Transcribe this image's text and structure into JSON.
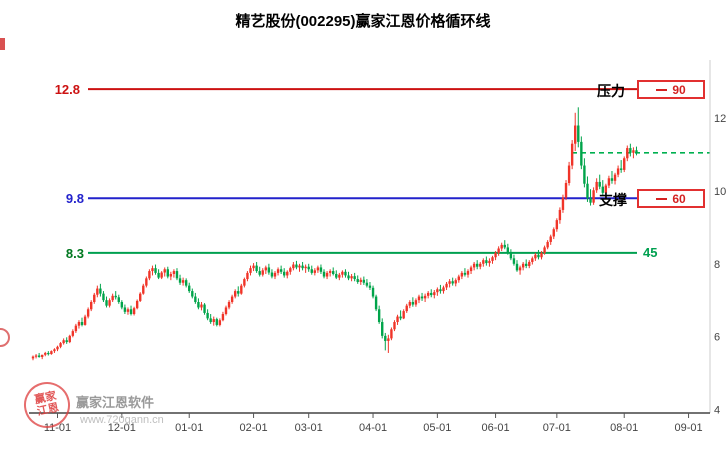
{
  "title": "精艺股份(002295)赢家江恩价格循环线",
  "levels": {
    "resistance": {
      "label": "压力",
      "price": "12.8",
      "value": "90"
    },
    "support": {
      "label": "支撑",
      "price": "9.8",
      "value": "60"
    },
    "cycle45": {
      "price": "8.3",
      "value": "45"
    }
  },
  "watermark": {
    "brand": "赢家江恩软件",
    "url": "www.720gann.cn",
    "seal_line1": "赢家",
    "seal_line2": "江恩"
  },
  "chart_data": {
    "type": "candlestick",
    "title": "精艺股份(002295)赢家江恩价格循环线",
    "up_color": "#f03428",
    "down_color": "#00a44a",
    "price_min": 3.9,
    "price_max": 13.6,
    "total_slots": 222,
    "y_ticks": [
      12,
      10,
      8,
      6,
      4
    ],
    "x_labels": [
      "11-01",
      "12-01",
      "01-01",
      "02-01",
      "03-01",
      "04-01",
      "05-01",
      "06-01",
      "07-01",
      "08-01",
      "09-01"
    ],
    "x_label_slots": [
      8,
      29,
      51,
      72,
      90,
      111,
      132,
      151,
      171,
      193,
      214
    ],
    "hlines": [
      {
        "price": 12.8,
        "color": "#cc1111",
        "style": "solid",
        "name": "resistance-line-90"
      },
      {
        "price": 9.8,
        "color": "#2222cc",
        "style": "solid",
        "name": "support-line-60"
      },
      {
        "price": 8.3,
        "color": "#00a050",
        "style": "solid",
        "name": "cycle-line-45"
      },
      {
        "price": 11.05,
        "color": "#00b050",
        "style": "dashed",
        "name": "current-price-line"
      }
    ],
    "candles": [
      [
        5.4,
        5.48,
        5.35,
        5.45
      ],
      [
        5.45,
        5.52,
        5.4,
        5.48
      ],
      [
        5.48,
        5.55,
        5.42,
        5.44
      ],
      [
        5.44,
        5.5,
        5.38,
        5.5
      ],
      [
        5.5,
        5.58,
        5.46,
        5.55
      ],
      [
        5.55,
        5.6,
        5.48,
        5.52
      ],
      [
        5.52,
        5.62,
        5.5,
        5.6
      ],
      [
        5.6,
        5.68,
        5.55,
        5.65
      ],
      [
        5.65,
        5.75,
        5.6,
        5.72
      ],
      [
        5.72,
        5.85,
        5.68,
        5.82
      ],
      [
        5.82,
        5.95,
        5.78,
        5.9
      ],
      [
        5.9,
        5.98,
        5.8,
        5.85
      ],
      [
        5.85,
        6.05,
        5.82,
        6.02
      ],
      [
        6.02,
        6.2,
        5.98,
        6.15
      ],
      [
        6.15,
        6.35,
        6.1,
        6.3
      ],
      [
        6.3,
        6.45,
        6.22,
        6.4
      ],
      [
        6.4,
        6.52,
        6.28,
        6.32
      ],
      [
        6.32,
        6.6,
        6.3,
        6.55
      ],
      [
        6.55,
        6.8,
        6.5,
        6.75
      ],
      [
        6.75,
        7.0,
        6.7,
        6.95
      ],
      [
        6.95,
        7.2,
        6.9,
        7.15
      ],
      [
        7.15,
        7.4,
        7.08,
        7.32
      ],
      [
        7.32,
        7.45,
        7.1,
        7.18
      ],
      [
        7.18,
        7.25,
        6.95,
        7.0
      ],
      [
        7.0,
        7.1,
        6.8,
        6.85
      ],
      [
        6.85,
        7.05,
        6.8,
        7.0
      ],
      [
        7.0,
        7.18,
        6.95,
        7.12
      ],
      [
        7.12,
        7.25,
        7.02,
        7.08
      ],
      [
        7.08,
        7.15,
        6.9,
        6.95
      ],
      [
        6.95,
        7.0,
        6.75,
        6.8
      ],
      [
        6.8,
        6.88,
        6.62,
        6.68
      ],
      [
        6.68,
        6.8,
        6.6,
        6.75
      ],
      [
        6.75,
        6.85,
        6.58,
        6.62
      ],
      [
        6.62,
        6.82,
        6.58,
        6.78
      ],
      [
        6.78,
        7.02,
        6.75,
        6.98
      ],
      [
        6.98,
        7.22,
        6.95,
        7.18
      ],
      [
        7.18,
        7.45,
        7.15,
        7.4
      ],
      [
        7.4,
        7.65,
        7.35,
        7.6
      ],
      [
        7.6,
        7.85,
        7.55,
        7.8
      ],
      [
        7.8,
        7.95,
        7.68,
        7.88
      ],
      [
        7.88,
        7.98,
        7.7,
        7.75
      ],
      [
        7.75,
        7.85,
        7.58,
        7.62
      ],
      [
        7.62,
        7.8,
        7.58,
        7.76
      ],
      [
        7.76,
        7.9,
        7.65,
        7.85
      ],
      [
        7.85,
        7.92,
        7.6,
        7.65
      ],
      [
        7.65,
        7.78,
        7.55,
        7.72
      ],
      [
        7.72,
        7.85,
        7.62,
        7.8
      ],
      [
        7.8,
        7.88,
        7.55,
        7.6
      ],
      [
        7.6,
        7.7,
        7.42,
        7.48
      ],
      [
        7.48,
        7.62,
        7.4,
        7.55
      ],
      [
        7.55,
        7.6,
        7.35,
        7.4
      ],
      [
        7.4,
        7.48,
        7.2,
        7.25
      ],
      [
        7.25,
        7.32,
        7.05,
        7.1
      ],
      [
        7.1,
        7.2,
        6.9,
        6.95
      ],
      [
        6.95,
        7.05,
        6.75,
        6.8
      ],
      [
        6.8,
        6.95,
        6.72,
        6.88
      ],
      [
        6.88,
        6.92,
        6.6,
        6.65
      ],
      [
        6.65,
        6.75,
        6.45,
        6.5
      ],
      [
        6.5,
        6.62,
        6.35,
        6.4
      ],
      [
        6.4,
        6.55,
        6.3,
        6.48
      ],
      [
        6.48,
        6.52,
        6.28,
        6.32
      ],
      [
        6.32,
        6.5,
        6.28,
        6.45
      ],
      [
        6.45,
        6.68,
        6.42,
        6.62
      ],
      [
        6.62,
        6.85,
        6.58,
        6.8
      ],
      [
        6.8,
        7.0,
        6.75,
        6.95
      ],
      [
        6.95,
        7.15,
        6.9,
        7.1
      ],
      [
        7.1,
        7.3,
        7.05,
        7.25
      ],
      [
        7.25,
        7.38,
        7.1,
        7.18
      ],
      [
        7.18,
        7.45,
        7.15,
        7.4
      ],
      [
        7.4,
        7.62,
        7.35,
        7.58
      ],
      [
        7.58,
        7.8,
        7.52,
        7.75
      ],
      [
        7.75,
        7.95,
        7.68,
        7.88
      ],
      [
        7.88,
        8.02,
        7.8,
        7.95
      ],
      [
        7.95,
        8.05,
        7.75,
        7.8
      ],
      [
        7.8,
        7.92,
        7.65,
        7.7
      ],
      [
        7.7,
        7.88,
        7.65,
        7.82
      ],
      [
        7.82,
        7.95,
        7.72,
        7.9
      ],
      [
        7.9,
        8.0,
        7.7,
        7.76
      ],
      [
        7.76,
        7.85,
        7.6,
        7.65
      ],
      [
        7.65,
        7.8,
        7.58,
        7.75
      ],
      [
        7.75,
        7.9,
        7.68,
        7.85
      ],
      [
        7.85,
        7.95,
        7.72,
        7.78
      ],
      [
        7.78,
        7.88,
        7.62,
        7.68
      ],
      [
        7.68,
        7.82,
        7.6,
        7.78
      ],
      [
        7.78,
        7.92,
        7.7,
        7.88
      ],
      [
        7.88,
        8.05,
        7.82,
        7.98
      ],
      [
        7.98,
        8.08,
        7.85,
        7.9
      ],
      [
        7.9,
        8.0,
        7.78,
        7.95
      ],
      [
        7.95,
        8.05,
        7.82,
        7.88
      ],
      [
        7.88,
        7.98,
        7.75,
        7.92
      ],
      [
        7.92,
        8.0,
        7.78,
        7.85
      ],
      [
        7.85,
        7.95,
        7.7,
        7.75
      ],
      [
        7.75,
        7.88,
        7.68,
        7.82
      ],
      [
        7.82,
        7.95,
        7.75,
        7.9
      ],
      [
        7.9,
        7.98,
        7.72,
        7.78
      ],
      [
        7.78,
        7.85,
        7.6,
        7.65
      ],
      [
        7.65,
        7.8,
        7.58,
        7.75
      ],
      [
        7.75,
        7.85,
        7.65,
        7.8
      ],
      [
        7.8,
        7.9,
        7.68,
        7.72
      ],
      [
        7.72,
        7.82,
        7.58,
        7.62
      ],
      [
        7.62,
        7.75,
        7.55,
        7.7
      ],
      [
        7.7,
        7.82,
        7.62,
        7.78
      ],
      [
        7.78,
        7.85,
        7.62,
        7.68
      ],
      [
        7.68,
        7.78,
        7.55,
        7.6
      ],
      [
        7.6,
        7.72,
        7.52,
        7.66
      ],
      [
        7.66,
        7.75,
        7.52,
        7.58
      ],
      [
        7.58,
        7.68,
        7.45,
        7.5
      ],
      [
        7.5,
        7.62,
        7.42,
        7.56
      ],
      [
        7.56,
        7.65,
        7.42,
        7.48
      ],
      [
        7.48,
        7.58,
        7.35,
        7.4
      ],
      [
        7.4,
        7.5,
        7.28,
        7.34
      ],
      [
        7.34,
        7.4,
        7.05,
        7.1
      ],
      [
        7.1,
        7.15,
        6.7,
        6.75
      ],
      [
        6.75,
        6.85,
        6.35,
        6.4
      ],
      [
        6.4,
        6.5,
        5.95,
        6.02
      ],
      [
        6.02,
        6.1,
        5.62,
        5.88
      ],
      [
        5.88,
        6.05,
        5.55,
        5.95
      ],
      [
        5.95,
        6.25,
        5.9,
        6.2
      ],
      [
        6.2,
        6.45,
        6.15,
        6.4
      ],
      [
        6.4,
        6.6,
        6.32,
        6.55
      ],
      [
        6.55,
        6.72,
        6.45,
        6.5
      ],
      [
        6.5,
        6.75,
        6.48,
        6.7
      ],
      [
        6.7,
        6.9,
        6.65,
        6.85
      ],
      [
        6.85,
        7.0,
        6.78,
        6.95
      ],
      [
        6.95,
        7.08,
        6.82,
        6.88
      ],
      [
        6.88,
        7.05,
        6.82,
        7.0
      ],
      [
        7.0,
        7.15,
        6.92,
        7.1
      ],
      [
        7.1,
        7.2,
        6.98,
        7.05
      ],
      [
        7.05,
        7.18,
        6.95,
        7.12
      ],
      [
        7.12,
        7.25,
        7.05,
        7.2
      ],
      [
        7.2,
        7.3,
        7.08,
        7.14
      ],
      [
        7.14,
        7.28,
        7.05,
        7.22
      ],
      [
        7.22,
        7.35,
        7.12,
        7.3
      ],
      [
        7.3,
        7.42,
        7.18,
        7.25
      ],
      [
        7.25,
        7.4,
        7.18,
        7.35
      ],
      [
        7.35,
        7.5,
        7.28,
        7.45
      ],
      [
        7.45,
        7.58,
        7.35,
        7.52
      ],
      [
        7.52,
        7.62,
        7.4,
        7.46
      ],
      [
        7.46,
        7.6,
        7.38,
        7.55
      ],
      [
        7.55,
        7.7,
        7.48,
        7.65
      ],
      [
        7.65,
        7.8,
        7.58,
        7.75
      ],
      [
        7.75,
        7.88,
        7.65,
        7.7
      ],
      [
        7.7,
        7.85,
        7.62,
        7.8
      ],
      [
        7.8,
        7.95,
        7.72,
        7.9
      ],
      [
        7.9,
        8.05,
        7.82,
        8.0
      ],
      [
        8.0,
        8.1,
        7.85,
        7.92
      ],
      [
        7.92,
        8.05,
        7.85,
        8.0
      ],
      [
        8.0,
        8.15,
        7.92,
        8.1
      ],
      [
        8.1,
        8.2,
        7.95,
        8.02
      ],
      [
        8.02,
        8.15,
        7.92,
        8.08
      ],
      [
        8.08,
        8.22,
        8.0,
        8.18
      ],
      [
        8.18,
        8.35,
        8.1,
        8.3
      ],
      [
        8.3,
        8.48,
        8.22,
        8.42
      ],
      [
        8.42,
        8.58,
        8.35,
        8.52
      ],
      [
        8.52,
        8.65,
        8.4,
        8.45
      ],
      [
        8.45,
        8.55,
        8.25,
        8.3
      ],
      [
        8.3,
        8.4,
        8.1,
        8.15
      ],
      [
        8.15,
        8.25,
        7.95,
        8.0
      ],
      [
        8.0,
        8.1,
        7.78,
        7.82
      ],
      [
        7.82,
        7.95,
        7.7,
        7.9
      ],
      [
        7.9,
        8.05,
        7.82,
        8.0
      ],
      [
        8.0,
        8.12,
        7.88,
        7.94
      ],
      [
        7.94,
        8.1,
        7.88,
        8.05
      ],
      [
        8.05,
        8.2,
        7.98,
        8.15
      ],
      [
        8.15,
        8.3,
        8.08,
        8.25
      ],
      [
        8.25,
        8.38,
        8.12,
        8.18
      ],
      [
        8.18,
        8.35,
        8.12,
        8.3
      ],
      [
        8.3,
        8.5,
        8.25,
        8.45
      ],
      [
        8.45,
        8.65,
        8.4,
        8.6
      ],
      [
        8.6,
        8.8,
        8.52,
        8.75
      ],
      [
        8.75,
        9.0,
        8.68,
        8.95
      ],
      [
        8.95,
        9.25,
        8.88,
        9.2
      ],
      [
        9.2,
        9.55,
        9.1,
        9.48
      ],
      [
        9.48,
        9.9,
        9.4,
        9.82
      ],
      [
        9.82,
        10.3,
        9.75,
        10.22
      ],
      [
        10.22,
        10.8,
        10.15,
        10.7
      ],
      [
        10.7,
        11.4,
        10.6,
        11.3
      ],
      [
        11.3,
        12.15,
        11.1,
        11.8
      ],
      [
        11.8,
        12.3,
        11.2,
        11.35
      ],
      [
        11.35,
        11.5,
        10.6,
        10.7
      ],
      [
        10.7,
        10.9,
        10.1,
        10.2
      ],
      [
        10.2,
        10.4,
        9.7,
        9.8
      ],
      [
        9.8,
        10.05,
        9.6,
        9.68
      ],
      [
        9.68,
        10.1,
        9.62,
        10.02
      ],
      [
        10.02,
        10.35,
        9.95,
        10.25
      ],
      [
        10.25,
        10.45,
        10.05,
        10.12
      ],
      [
        10.12,
        10.3,
        9.88,
        9.95
      ],
      [
        9.95,
        10.2,
        9.9,
        10.15
      ],
      [
        10.15,
        10.42,
        10.08,
        10.35
      ],
      [
        10.35,
        10.55,
        10.2,
        10.28
      ],
      [
        10.28,
        10.5,
        10.18,
        10.45
      ],
      [
        10.45,
        10.7,
        10.38,
        10.62
      ],
      [
        10.62,
        10.85,
        10.5,
        10.58
      ],
      [
        10.58,
        10.95,
        10.52,
        10.9
      ],
      [
        10.9,
        11.25,
        10.82,
        11.18
      ],
      [
        11.18,
        11.3,
        10.95,
        11.05
      ],
      [
        11.05,
        11.2,
        10.9,
        11.12
      ],
      [
        11.12,
        11.22,
        10.98,
        11.05
      ]
    ]
  }
}
